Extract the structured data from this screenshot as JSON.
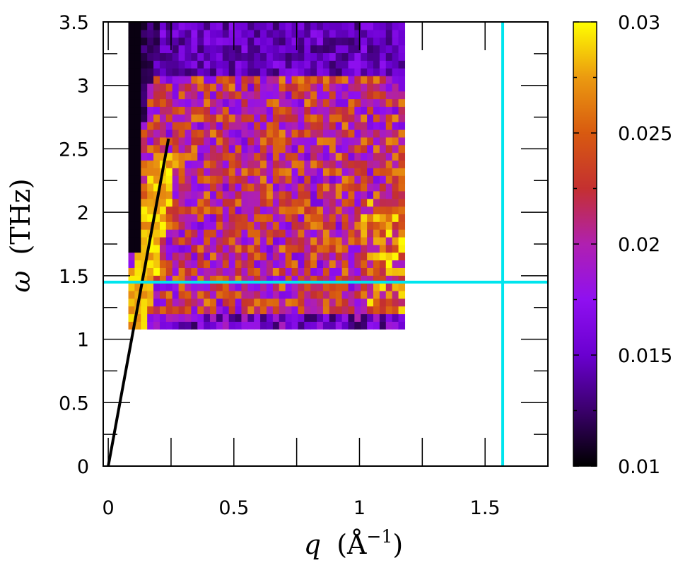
{
  "chart_data": {
    "type": "heatmap",
    "title": "",
    "xlabel": {
      "symbol": "q",
      "unit_open": "(Å",
      "unit_exp": "−1",
      "unit_close": ")"
    },
    "ylabel": {
      "symbol": "ω",
      "unit": "(THz)"
    },
    "xlim": [
      -0.02,
      1.75
    ],
    "ylim": [
      0,
      3.5
    ],
    "x_ticks": [
      0,
      0.5,
      1,
      1.5
    ],
    "x_tick_labels": [
      "0",
      "0.5",
      "1",
      "1.5"
    ],
    "x_minor_ticks": [
      0.25,
      0.75,
      1.25
    ],
    "y_ticks": [
      0,
      0.5,
      1,
      1.5,
      2,
      2.5,
      3,
      3.5
    ],
    "y_tick_labels": [
      "0",
      "0.5",
      "1",
      "1.5",
      "2",
      "2.5",
      "3",
      "3.5"
    ],
    "y_minor_ticks": [
      0.25,
      0.75,
      1.25,
      1.75,
      2.25,
      2.75,
      3.25
    ],
    "colorbar": {
      "min": 0.01,
      "max": 0.03,
      "ticks": [
        0.01,
        0.015,
        0.02,
        0.025,
        0.03
      ],
      "tick_labels": [
        "0.01",
        "0.015",
        "0.02",
        "0.025",
        "0.03"
      ],
      "minor_ticks": [
        0.0125,
        0.0175,
        0.0225,
        0.0275
      ],
      "colormap": [
        "#000000",
        "#3a006b",
        "#6a00d0",
        "#8f10f0",
        "#b020b0",
        "#c43030",
        "#d85a10",
        "#eb9a10",
        "#ffff00"
      ]
    },
    "heatmap": {
      "q_range": [
        0.08,
        1.18
      ],
      "omega_range": [
        1.08,
        3.5
      ],
      "n_q": 44,
      "n_omega": 40
    },
    "lines": [
      {
        "name": "dispersion",
        "color": "#000000",
        "points": [
          [
            0,
            0
          ],
          [
            0.24,
            2.58
          ]
        ]
      },
      {
        "name": "horizontal-cut",
        "color": "#00e5ee",
        "points": [
          [
            -0.02,
            1.45
          ],
          [
            1.75,
            1.45
          ]
        ]
      },
      {
        "name": "vertical-cut",
        "color": "#00e5ee",
        "points": [
          [
            1.57,
            0
          ],
          [
            1.57,
            3.5
          ]
        ]
      }
    ]
  }
}
